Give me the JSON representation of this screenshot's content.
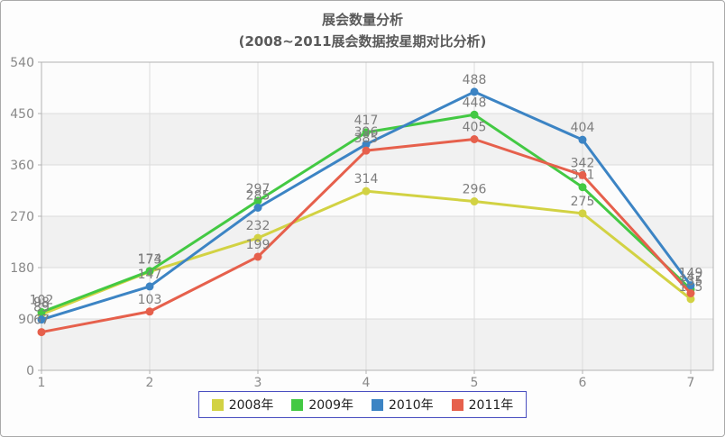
{
  "title": "展会数量分析",
  "subtitle": "(2008~2011展会数据按星期对比分析)",
  "chart_data": {
    "type": "line",
    "x": [
      1,
      2,
      3,
      4,
      5,
      6,
      7
    ],
    "xlabel": "",
    "ylabel": "",
    "ylim": [
      0,
      540
    ],
    "yticks": [
      0,
      90,
      180,
      270,
      360,
      450,
      540
    ],
    "grid": true,
    "data_labels": true,
    "legend_position": "bottom",
    "series": [
      {
        "name": "2008年",
        "color": "#d2d243",
        "values": [
          98,
          173,
          232,
          314,
          296,
          275,
          125
        ]
      },
      {
        "name": "2009年",
        "color": "#43c943",
        "values": [
          102,
          174,
          297,
          417,
          448,
          321,
          142
        ]
      },
      {
        "name": "2010年",
        "color": "#3c84c4",
        "values": [
          89,
          147,
          285,
          396,
          488,
          404,
          149
        ]
      },
      {
        "name": "2011年",
        "color": "#e6604c",
        "values": [
          67,
          103,
          199,
          385,
          405,
          342,
          135
        ]
      }
    ],
    "style": {
      "grid_color": "#dcdcdc",
      "plot_border_color": "#b2b2b2",
      "band_gray": "#f1f1f1",
      "band_white": "#fcfcfc",
      "data_label_color": "#7d7d7d",
      "tick_label_color": "#898989",
      "title_color": "#5a5a5a",
      "legend_border_color": "#4a4fc0"
    }
  }
}
